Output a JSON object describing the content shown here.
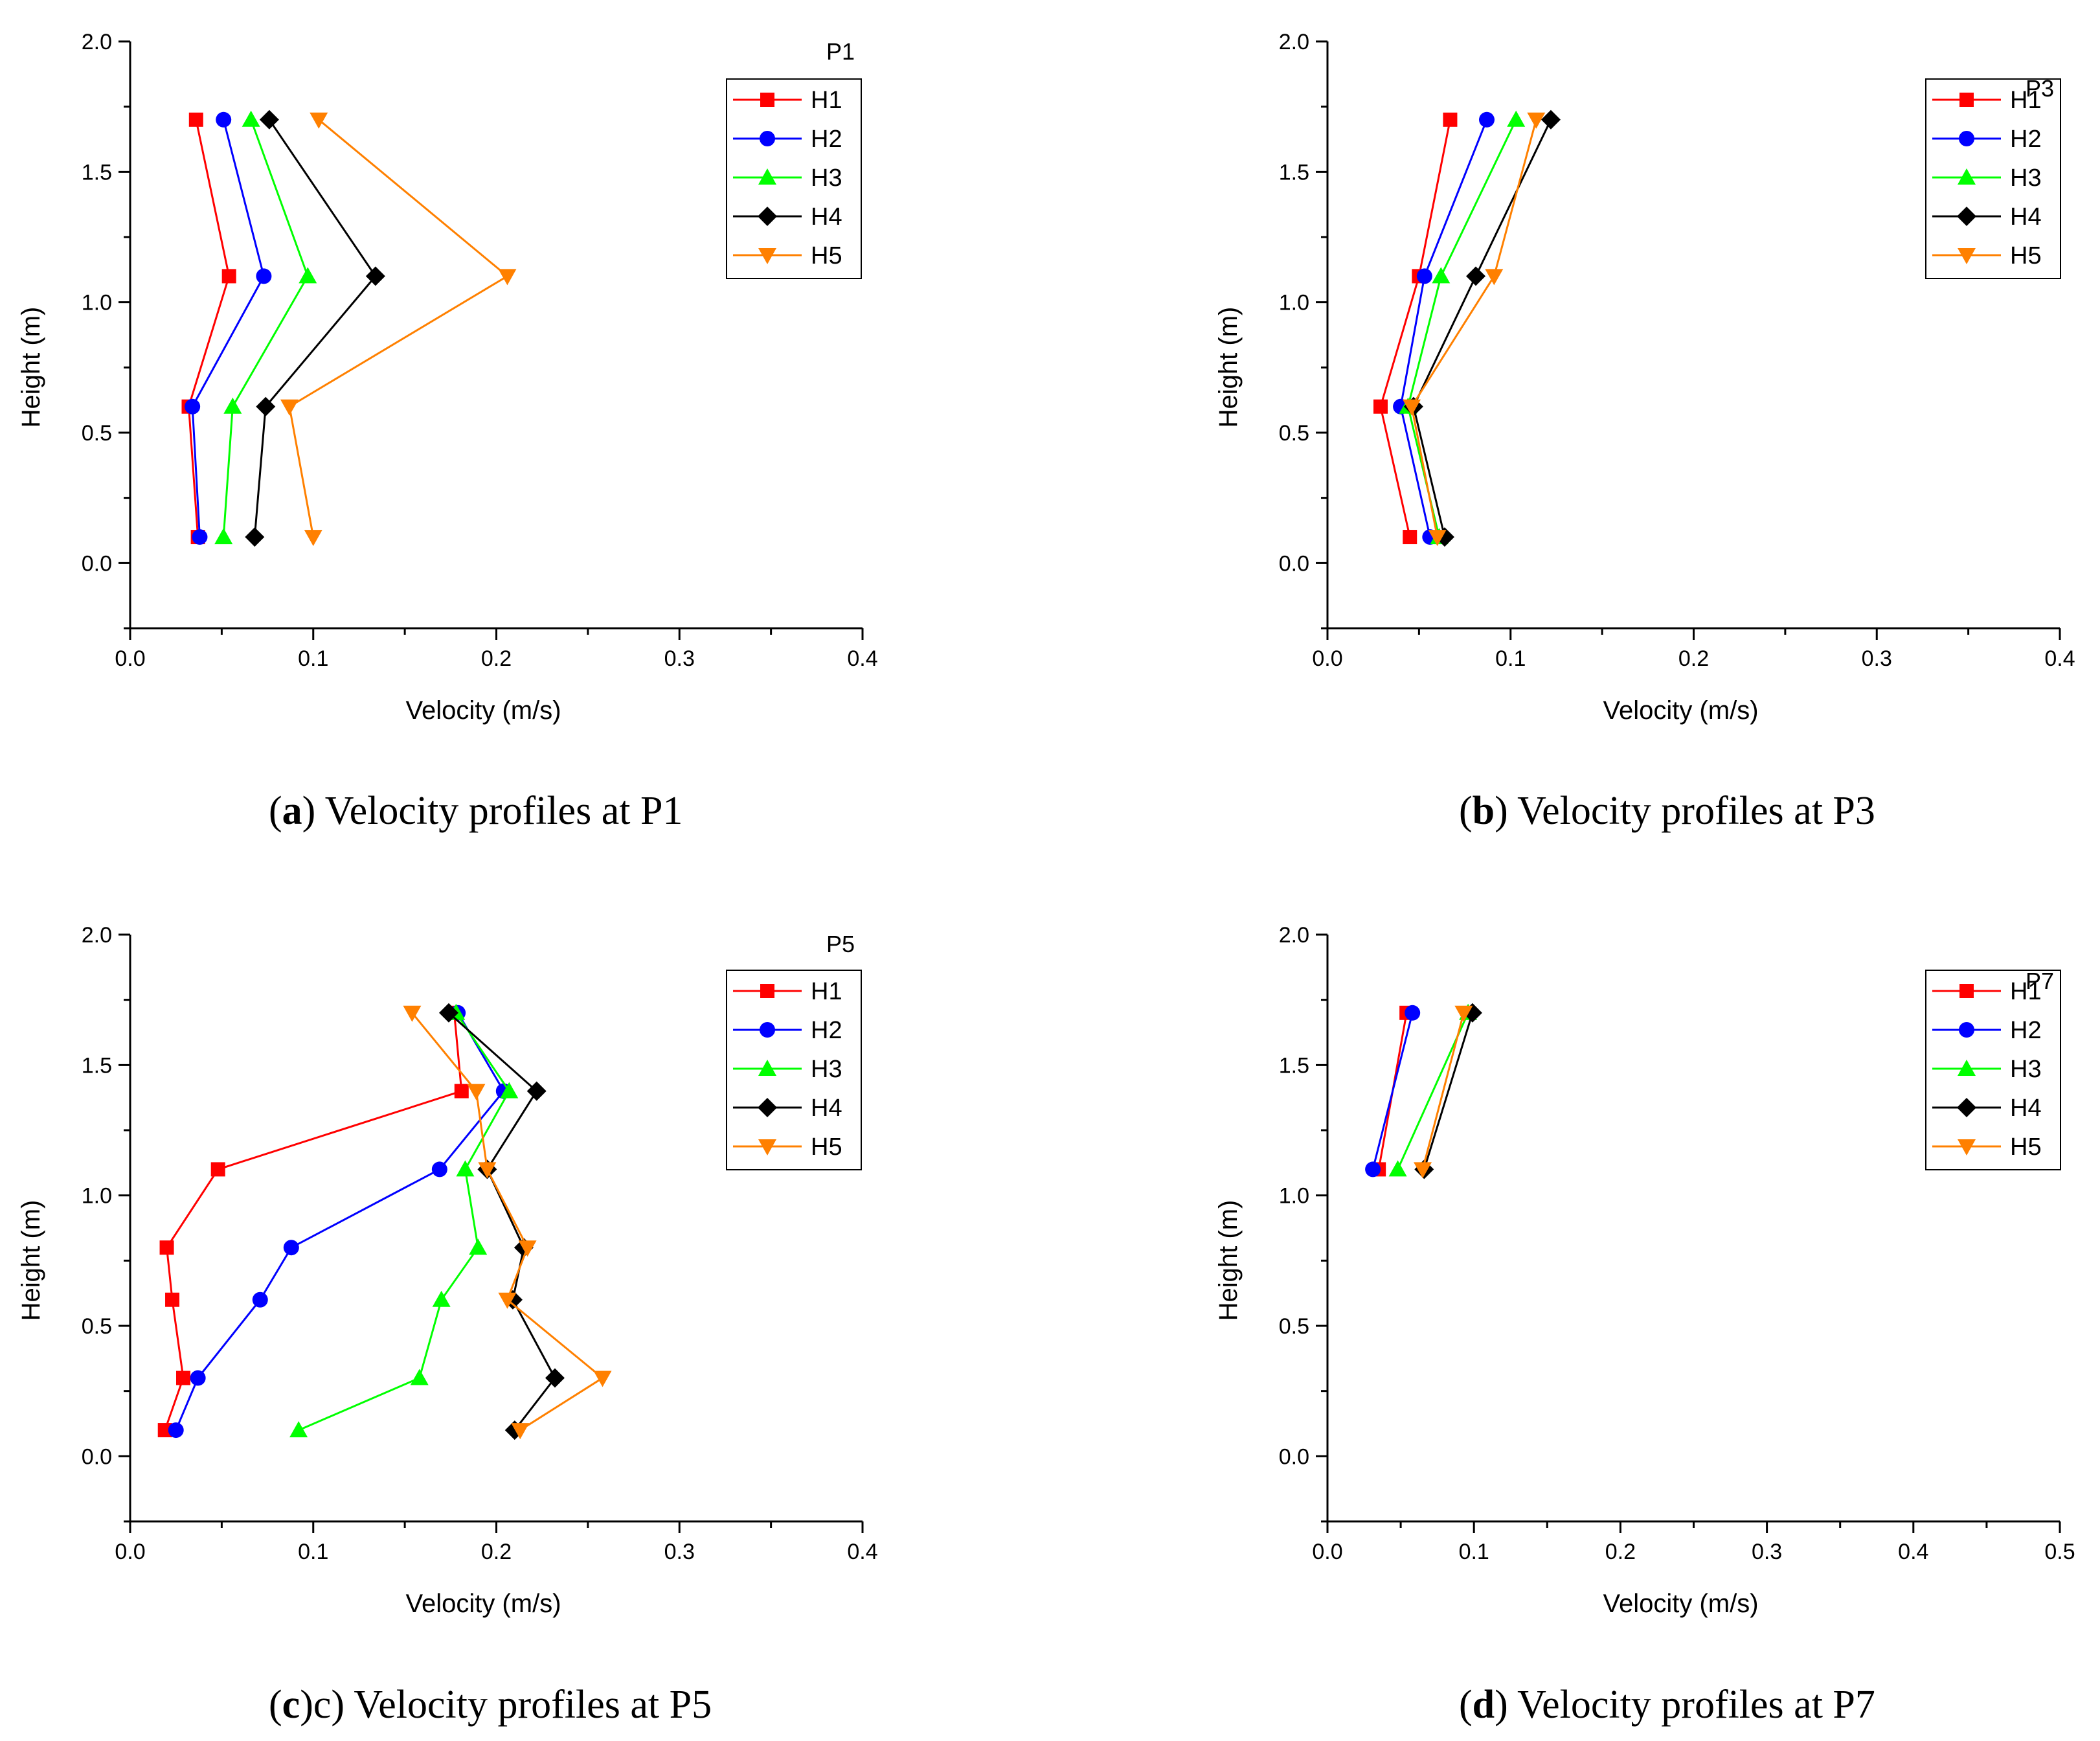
{
  "colors": {
    "H1": "#ff0000",
    "H2": "#0000ff",
    "H3": "#00ff00",
    "H4": "#000000",
    "H5": "#ff8000"
  },
  "chart_data": [
    {
      "type": "line",
      "panel_letter": "a",
      "caption_text": " Velocity profiles at P1",
      "legend_title": "P1",
      "xlabel": "Velocity (m/s)",
      "ylabel": "Height (m)",
      "xlim": [
        0,
        0.4
      ],
      "ylim": [
        -0.25,
        2.0
      ],
      "xticks": [
        "0.0",
        "0.1",
        "0.2",
        "0.3",
        "0.4"
      ],
      "yticks": [
        "0.0",
        "0.5",
        "1.0",
        "1.5",
        "2.0"
      ],
      "series": [
        {
          "name": "H1",
          "marker": "square",
          "points": [
            [
              0.037,
              0.1
            ],
            [
              0.032,
              0.6
            ],
            [
              0.054,
              1.1
            ],
            [
              0.036,
              1.7
            ]
          ]
        },
        {
          "name": "H2",
          "marker": "circle",
          "points": [
            [
              0.038,
              0.1
            ],
            [
              0.034,
              0.6
            ],
            [
              0.073,
              1.1
            ],
            [
              0.051,
              1.7
            ]
          ]
        },
        {
          "name": "H3",
          "marker": "triangle-up",
          "points": [
            [
              0.051,
              0.1
            ],
            [
              0.056,
              0.6
            ],
            [
              0.097,
              1.1
            ],
            [
              0.066,
              1.7
            ]
          ]
        },
        {
          "name": "H4",
          "marker": "diamond",
          "points": [
            [
              0.068,
              0.1
            ],
            [
              0.074,
              0.6
            ],
            [
              0.134,
              1.1
            ],
            [
              0.076,
              1.7
            ]
          ]
        },
        {
          "name": "H5",
          "marker": "triangle-down",
          "points": [
            [
              0.1,
              0.1
            ],
            [
              0.087,
              0.6
            ],
            [
              0.206,
              1.1
            ],
            [
              0.103,
              1.7
            ]
          ]
        }
      ]
    },
    {
      "type": "line",
      "panel_letter": "b",
      "caption_text": " Velocity profiles at P3",
      "legend_title": "P3",
      "xlabel": "Velocity (m/s)",
      "ylabel": "Height (m)",
      "xlim": [
        0,
        0.4
      ],
      "ylim": [
        -0.25,
        2.0
      ],
      "xticks": [
        "0.0",
        "0.1",
        "0.2",
        "0.3",
        "0.4"
      ],
      "yticks": [
        "0.0",
        "0.5",
        "1.0",
        "1.5",
        "2.0"
      ],
      "series": [
        {
          "name": "H1",
          "marker": "square",
          "points": [
            [
              0.045,
              0.1
            ],
            [
              0.029,
              0.6
            ],
            [
              0.05,
              1.1
            ],
            [
              0.067,
              1.7
            ]
          ]
        },
        {
          "name": "H2",
          "marker": "circle",
          "points": [
            [
              0.056,
              0.1
            ],
            [
              0.04,
              0.6
            ],
            [
              0.053,
              1.1
            ],
            [
              0.087,
              1.7
            ]
          ]
        },
        {
          "name": "H3",
          "marker": "triangle-up",
          "points": [
            [
              0.061,
              0.1
            ],
            [
              0.044,
              0.6
            ],
            [
              0.062,
              1.1
            ],
            [
              0.103,
              1.7
            ]
          ]
        },
        {
          "name": "H4",
          "marker": "diamond",
          "points": [
            [
              0.064,
              0.1
            ],
            [
              0.047,
              0.6
            ],
            [
              0.081,
              1.1
            ],
            [
              0.122,
              1.7
            ]
          ]
        },
        {
          "name": "H5",
          "marker": "triangle-down",
          "points": [
            [
              0.06,
              0.1
            ],
            [
              0.046,
              0.6
            ],
            [
              0.091,
              1.1
            ],
            [
              0.114,
              1.7
            ]
          ]
        }
      ]
    },
    {
      "type": "line",
      "panel_letter": "c",
      "caption_text": "c) Velocity profiles at P5",
      "legend_title": "P5",
      "xlabel": "Velocity (m/s)",
      "ylabel": "Height (m)",
      "xlim": [
        0,
        0.4
      ],
      "ylim": [
        -0.25,
        2.0
      ],
      "xticks": [
        "0.0",
        "0.1",
        "0.2",
        "0.3",
        "0.4"
      ],
      "yticks": [
        "0.0",
        "0.5",
        "1.0",
        "1.5",
        "2.0"
      ],
      "series": [
        {
          "name": "H1",
          "marker": "square",
          "points": [
            [
              0.019,
              0.1
            ],
            [
              0.029,
              0.3
            ],
            [
              0.023,
              0.6
            ],
            [
              0.02,
              0.8
            ],
            [
              0.048,
              1.1
            ],
            [
              0.181,
              1.4
            ],
            [
              0.177,
              1.7
            ]
          ]
        },
        {
          "name": "H2",
          "marker": "circle",
          "points": [
            [
              0.025,
              0.1
            ],
            [
              0.037,
              0.3
            ],
            [
              0.071,
              0.6
            ],
            [
              0.088,
              0.8
            ],
            [
              0.169,
              1.1
            ],
            [
              0.204,
              1.4
            ],
            [
              0.179,
              1.7
            ]
          ]
        },
        {
          "name": "H3",
          "marker": "triangle-up",
          "points": [
            [
              0.092,
              0.1
            ],
            [
              0.158,
              0.3
            ],
            [
              0.17,
              0.6
            ],
            [
              0.19,
              0.8
            ],
            [
              0.183,
              1.1
            ],
            [
              0.207,
              1.4
            ],
            [
              0.178,
              1.7
            ]
          ]
        },
        {
          "name": "H4",
          "marker": "diamond",
          "points": [
            [
              0.21,
              0.1
            ],
            [
              0.232,
              0.3
            ],
            [
              0.209,
              0.6
            ],
            [
              0.215,
              0.8
            ],
            [
              0.195,
              1.1
            ],
            [
              0.222,
              1.4
            ],
            [
              0.174,
              1.7
            ]
          ]
        },
        {
          "name": "H5",
          "marker": "triangle-down",
          "points": [
            [
              0.213,
              0.1
            ],
            [
              0.258,
              0.3
            ],
            [
              0.206,
              0.6
            ],
            [
              0.217,
              0.8
            ],
            [
              0.195,
              1.1
            ],
            [
              0.189,
              1.4
            ],
            [
              0.154,
              1.7
            ]
          ]
        }
      ]
    },
    {
      "type": "line",
      "panel_letter": "d",
      "caption_text": " Velocity profiles at P7",
      "legend_title": "P7",
      "xlabel": "Velocity (m/s)",
      "ylabel": "Height (m)",
      "xlim": [
        0,
        0.5
      ],
      "ylim": [
        -0.25,
        2.0
      ],
      "xticks": [
        "0.0",
        "0.1",
        "0.2",
        "0.3",
        "0.4",
        "0.5"
      ],
      "yticks": [
        "0.0",
        "0.5",
        "1.0",
        "1.5",
        "2.0"
      ],
      "series": [
        {
          "name": "H1",
          "marker": "square",
          "points": [
            [
              0.035,
              1.1
            ],
            [
              0.054,
              1.7
            ]
          ]
        },
        {
          "name": "H2",
          "marker": "circle",
          "points": [
            [
              0.031,
              1.1
            ],
            [
              0.058,
              1.7
            ]
          ]
        },
        {
          "name": "H3",
          "marker": "triangle-up",
          "points": [
            [
              0.048,
              1.1
            ],
            [
              0.096,
              1.7
            ]
          ]
        },
        {
          "name": "H4",
          "marker": "diamond",
          "points": [
            [
              0.066,
              1.1
            ],
            [
              0.099,
              1.7
            ]
          ]
        },
        {
          "name": "H5",
          "marker": "triangle-down",
          "points": [
            [
              0.065,
              1.1
            ],
            [
              0.093,
              1.7
            ]
          ]
        }
      ]
    }
  ]
}
